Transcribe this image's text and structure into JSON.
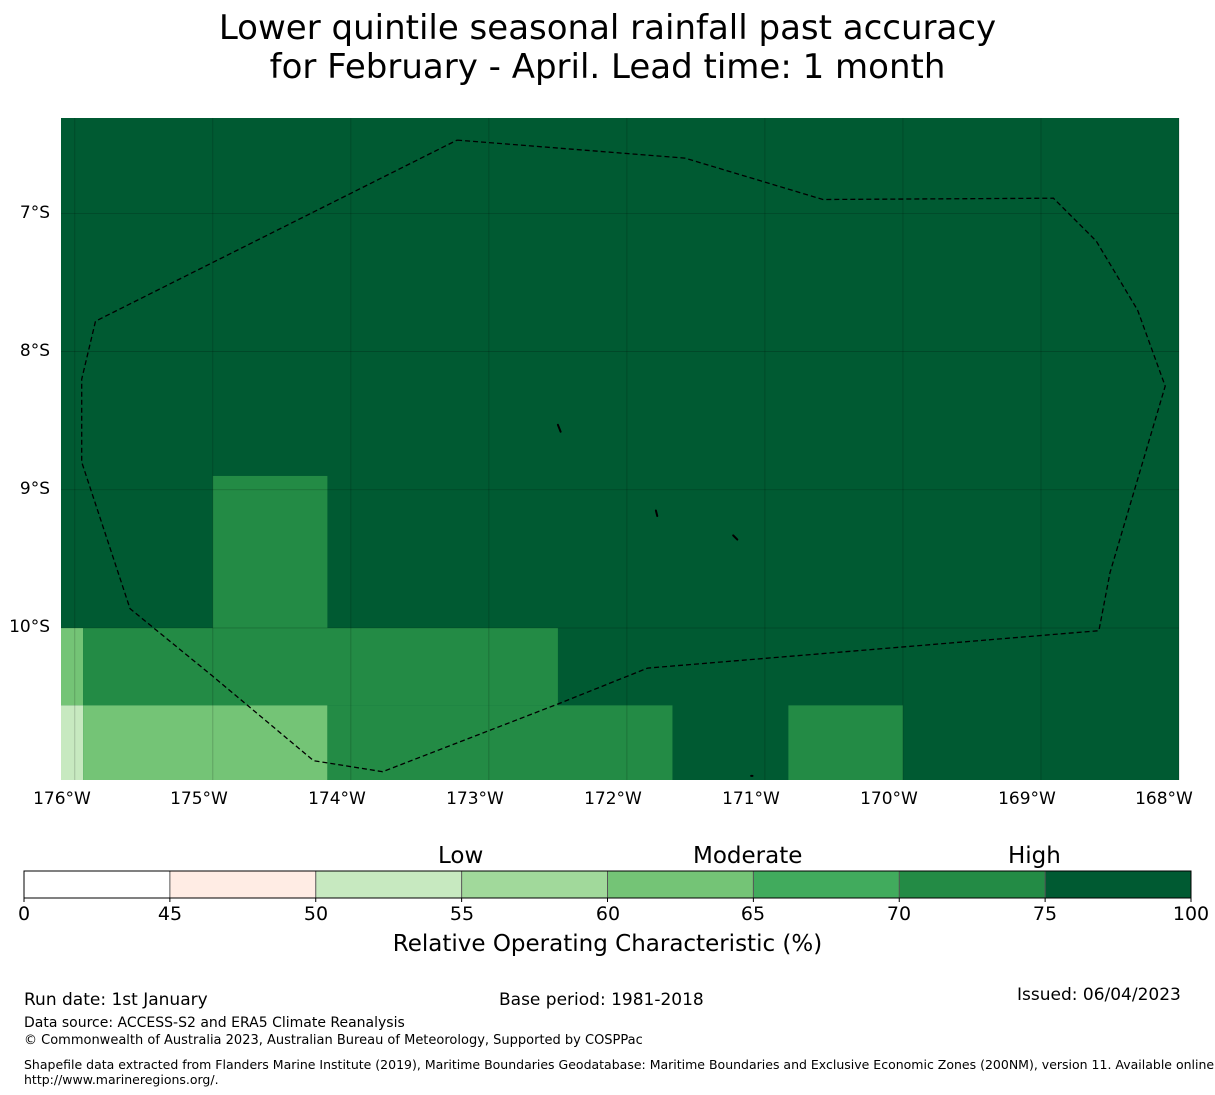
{
  "title": {
    "line1": "Lower quintile seasonal rainfall past accuracy",
    "line2": "for February - April. Lead time: 1 month"
  },
  "map": {
    "lat_labels": [
      "7°S",
      "8°S",
      "9°S",
      "10°S"
    ],
    "lon_labels": [
      "176°W",
      "175°W",
      "174°W",
      "173°W",
      "172°W",
      "171°W",
      "170°W",
      "169°W",
      "168°W"
    ],
    "extent": {
      "lon_min": -176.1,
      "lon_max": -168.0,
      "lat_north": -6.31,
      "lat_south": -11.1
    },
    "background_roc_band": "75-100",
    "cells": [
      {
        "lon0": -175.0,
        "lon1": -174.17,
        "lat_top": -8.9,
        "lat_bottom": -10.0,
        "roc_band": "70-75"
      },
      {
        "lon0": -176.1,
        "lon1": -175.94,
        "lat_top": -10.0,
        "lat_bottom": -10.56,
        "roc_band": "60-65"
      },
      {
        "lon0": -175.94,
        "lon1": -172.5,
        "lat_top": -10.0,
        "lat_bottom": -10.56,
        "roc_band": "70-75"
      },
      {
        "lon0": -176.1,
        "lon1": -175.94,
        "lat_top": -10.56,
        "lat_bottom": -11.1,
        "roc_band": "50-55"
      },
      {
        "lon0": -175.94,
        "lon1": -174.17,
        "lat_top": -10.56,
        "lat_bottom": -11.1,
        "roc_band": "60-65"
      },
      {
        "lon0": -174.17,
        "lon1": -171.67,
        "lat_top": -10.56,
        "lat_bottom": -11.1,
        "roc_band": "70-75"
      },
      {
        "lon0": -170.83,
        "lon1": -170.0,
        "lat_top": -10.56,
        "lat_bottom": -11.1,
        "roc_band": "70-75"
      }
    ],
    "eez_boundary": [
      [
        -173.23,
        -6.47
      ],
      [
        -171.58,
        -6.6
      ],
      [
        -170.58,
        -6.9
      ],
      [
        -168.91,
        -6.89
      ],
      [
        -168.6,
        -7.2
      ],
      [
        -168.3,
        -7.7
      ],
      [
        -168.1,
        -8.25
      ],
      [
        -168.5,
        -9.6
      ],
      [
        -168.58,
        -10.02
      ],
      [
        -171.85,
        -10.29
      ],
      [
        -172.5,
        -10.55
      ],
      [
        -173.77,
        -11.04
      ],
      [
        -174.27,
        -10.96
      ],
      [
        -175.0,
        -10.35
      ],
      [
        -175.6,
        -9.86
      ],
      [
        -175.95,
        -8.8
      ],
      [
        -175.95,
        -8.2
      ],
      [
        -175.85,
        -7.78
      ],
      [
        -173.23,
        -6.47
      ]
    ],
    "islands": [
      [
        [
          -172.5,
          -8.53
        ],
        [
          -172.48,
          -8.58
        ]
      ],
      [
        [
          -171.79,
          -9.15
        ],
        [
          -171.78,
          -9.19
        ]
      ],
      [
        [
          -171.23,
          -9.33
        ],
        [
          -171.2,
          -9.36
        ]
      ],
      [
        [
          -171.1,
          -11.07
        ],
        [
          -171.09,
          -11.07
        ]
      ]
    ]
  },
  "colorbar": {
    "bins": [
      {
        "from": 0,
        "to": 45,
        "color": "#ffffff"
      },
      {
        "from": 45,
        "to": 50,
        "color": "#ffece4"
      },
      {
        "from": 50,
        "to": 55,
        "color": "#c7e9c0"
      },
      {
        "from": 55,
        "to": 60,
        "color": "#a1d99b"
      },
      {
        "from": 60,
        "to": 65,
        "color": "#74c476"
      },
      {
        "from": 65,
        "to": 70,
        "color": "#41ab5d"
      },
      {
        "from": 70,
        "to": 75,
        "color": "#238b45"
      },
      {
        "from": 75,
        "to": 100,
        "color": "#005a32"
      }
    ],
    "ticks": [
      "0",
      "45",
      "50",
      "55",
      "60",
      "65",
      "70",
      "75",
      "100"
    ],
    "category_labels": {
      "low": "Low",
      "moderate": "Moderate",
      "high": "High"
    },
    "title": "Relative Operating Characteristic (%)"
  },
  "footer": {
    "run_date": "Run date: 1st January",
    "base_period": "Base period: 1981-2018",
    "issued": "Issued: 06/04/2023",
    "data_source": "Data source: ACCESS-S2 and ERA5 Climate Reanalysis",
    "copyright": "© Commonwealth of Australia 2023, Australian Bureau of Meteorology, Supported by COSPPac",
    "shapefile_line1": "Shapefile data extracted from Flanders Marine Institute (2019), Maritime Boundaries Geodatabase: Maritime Boundaries and Exclusive Economic Zones (200NM), version 11. Available online at",
    "shapefile_line2": "http://www.marineregions.org/."
  }
}
